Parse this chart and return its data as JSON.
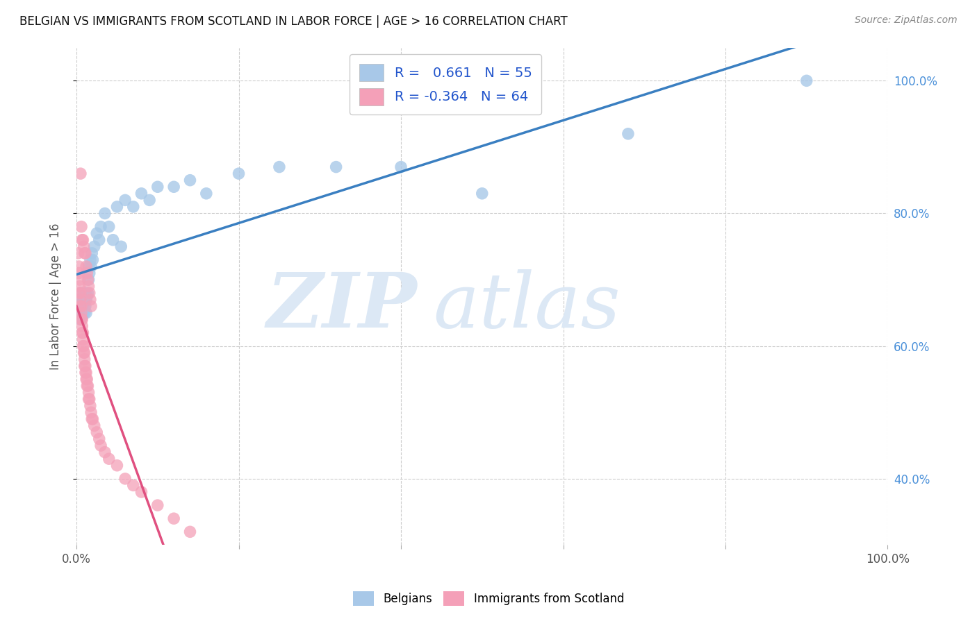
{
  "title": "BELGIAN VS IMMIGRANTS FROM SCOTLAND IN LABOR FORCE | AGE > 16 CORRELATION CHART",
  "source": "Source: ZipAtlas.com",
  "ylabel": "In Labor Force | Age > 16",
  "xlim": [
    0.0,
    1.0
  ],
  "ylim": [
    0.3,
    1.05
  ],
  "blue_color": "#a8c8e8",
  "pink_color": "#f4a0b8",
  "blue_line_color": "#3a7fc1",
  "pink_line_color": "#e05080",
  "pink_line_dashed_color": "#c8c8d8",
  "watermark_zip": "ZIP",
  "watermark_atlas": "atlas",
  "watermark_color": "#dce8f5",
  "background_color": "#ffffff",
  "grid_color": "#cccccc",
  "right_tick_color": "#4a90d9",
  "legend_r1": "R =   0.661   N = 55",
  "legend_r2": "R = -0.364   N = 64",
  "belgians_x": [
    0.002,
    0.003,
    0.003,
    0.004,
    0.004,
    0.005,
    0.005,
    0.006,
    0.006,
    0.007,
    0.007,
    0.008,
    0.008,
    0.009,
    0.009,
    0.01,
    0.01,
    0.01,
    0.011,
    0.011,
    0.012,
    0.012,
    0.013,
    0.014,
    0.015,
    0.015,
    0.016,
    0.017,
    0.018,
    0.019,
    0.02,
    0.022,
    0.025,
    0.028,
    0.03,
    0.035,
    0.04,
    0.045,
    0.05,
    0.055,
    0.06,
    0.07,
    0.08,
    0.09,
    0.1,
    0.12,
    0.14,
    0.16,
    0.2,
    0.25,
    0.32,
    0.4,
    0.5,
    0.68,
    0.9
  ],
  "belgians_y": [
    0.66,
    0.67,
    0.655,
    0.665,
    0.645,
    0.66,
    0.64,
    0.67,
    0.68,
    0.655,
    0.645,
    0.66,
    0.65,
    0.665,
    0.675,
    0.66,
    0.67,
    0.65,
    0.68,
    0.66,
    0.67,
    0.65,
    0.675,
    0.68,
    0.7,
    0.72,
    0.71,
    0.73,
    0.72,
    0.74,
    0.73,
    0.75,
    0.77,
    0.76,
    0.78,
    0.8,
    0.78,
    0.76,
    0.81,
    0.75,
    0.82,
    0.81,
    0.83,
    0.82,
    0.84,
    0.84,
    0.85,
    0.83,
    0.86,
    0.87,
    0.87,
    0.87,
    0.83,
    0.92,
    1.0
  ],
  "scotland_x": [
    0.002,
    0.003,
    0.003,
    0.004,
    0.004,
    0.004,
    0.005,
    0.005,
    0.005,
    0.006,
    0.006,
    0.006,
    0.007,
    0.007,
    0.007,
    0.008,
    0.008,
    0.008,
    0.009,
    0.009,
    0.01,
    0.01,
    0.01,
    0.011,
    0.011,
    0.012,
    0.012,
    0.013,
    0.013,
    0.014,
    0.015,
    0.015,
    0.016,
    0.017,
    0.018,
    0.019,
    0.02,
    0.022,
    0.025,
    0.028,
    0.03,
    0.035,
    0.04,
    0.05,
    0.06,
    0.07,
    0.08,
    0.1,
    0.12,
    0.14,
    0.005,
    0.006,
    0.007,
    0.008,
    0.009,
    0.01,
    0.011,
    0.012,
    0.013,
    0.014,
    0.015,
    0.016,
    0.017,
    0.018
  ],
  "scotland_y": [
    0.74,
    0.72,
    0.71,
    0.7,
    0.69,
    0.68,
    0.68,
    0.67,
    0.66,
    0.66,
    0.65,
    0.64,
    0.64,
    0.63,
    0.62,
    0.62,
    0.61,
    0.6,
    0.6,
    0.59,
    0.59,
    0.58,
    0.57,
    0.57,
    0.56,
    0.56,
    0.55,
    0.55,
    0.54,
    0.54,
    0.53,
    0.52,
    0.52,
    0.51,
    0.5,
    0.49,
    0.49,
    0.48,
    0.47,
    0.46,
    0.45,
    0.44,
    0.43,
    0.42,
    0.4,
    0.39,
    0.38,
    0.36,
    0.34,
    0.32,
    0.86,
    0.78,
    0.76,
    0.76,
    0.75,
    0.74,
    0.74,
    0.72,
    0.71,
    0.7,
    0.69,
    0.68,
    0.67,
    0.66
  ]
}
